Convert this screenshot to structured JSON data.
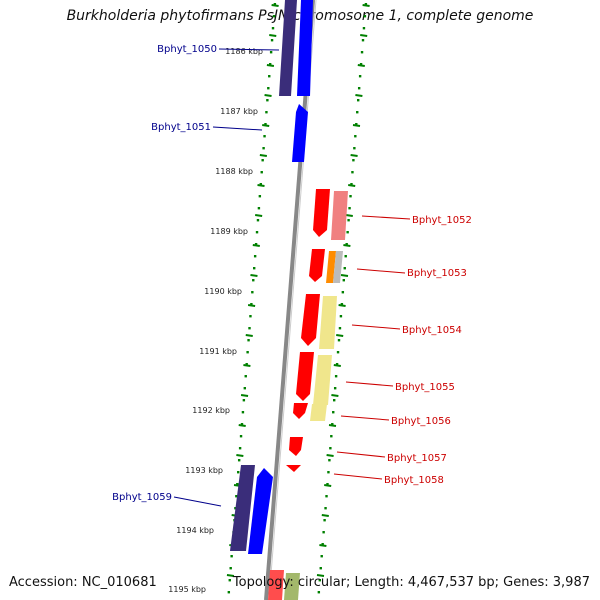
{
  "title": "Burkholderia phytofirmans PsJN chromosome 1, complete genome",
  "accession": "Accession: NC_010681",
  "topology": "Topology: circular; Length: 4,467,537 bp; Genes: 3,987",
  "ticks": [
    "1186 kbp",
    "1187 kbp",
    "1188 kbp",
    "1189 kbp",
    "1190 kbp",
    "1191 kbp",
    "1192 kbp",
    "1193 kbp",
    "1194 kbp",
    "1195 kbp"
  ],
  "genes_left": [
    {
      "name": "Bphyt_1050"
    },
    {
      "name": "Bphyt_1051"
    },
    {
      "name": "Bphyt_1059"
    }
  ],
  "genes_right": [
    {
      "name": "Bphyt_1052"
    },
    {
      "name": "Bphyt_1053"
    },
    {
      "name": "Bphyt_1054"
    },
    {
      "name": "Bphyt_1055"
    },
    {
      "name": "Bphyt_1056"
    },
    {
      "name": "Bphyt_1057"
    },
    {
      "name": "Bphyt_1058"
    }
  ],
  "colors": {
    "left_label": "#00008b",
    "right_label": "#cc0000",
    "forward": "#0000ff",
    "forward_dark": "#3a2d7a",
    "reverse": "#ff0000",
    "reverse_light": "#f08080",
    "orange": "#ff8c00",
    "pale_yellow": "#f0e68c",
    "tick": "#008000",
    "backbone": "#888888"
  }
}
